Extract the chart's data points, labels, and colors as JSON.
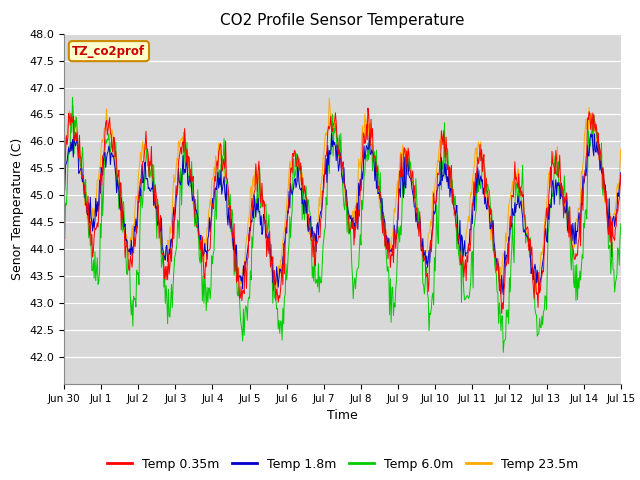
{
  "title": "CO2 Profile Sensor Temperature",
  "xlabel": "Time",
  "ylabel": "Senor Temperature (C)",
  "ylim": [
    41.5,
    48.0
  ],
  "yticks": [
    42.0,
    42.5,
    43.0,
    43.5,
    44.0,
    44.5,
    45.0,
    45.5,
    46.0,
    46.5,
    47.0,
    47.5,
    48.0
  ],
  "series_colors": [
    "#ff0000",
    "#0000cc",
    "#00cc00",
    "#ffaa00"
  ],
  "series_labels": [
    "Temp 0.35m",
    "Temp 1.8m",
    "Temp 6.0m",
    "Temp 23.5m"
  ],
  "annotation_text": "TZ_co2prof",
  "annotation_color": "#cc0000",
  "annotation_bg": "#ffffcc",
  "annotation_border": "#cc8800",
  "fig_bg": "#ffffff",
  "plot_bg": "#d8d8d8",
  "grid_color": "#ffffff",
  "x_tick_labels": [
    "Jun 30",
    "Jul 1",
    "Jul 2",
    "Jul 3",
    "Jul 4",
    "Jul 5",
    "Jul 6",
    "Jul 7",
    "Jul 8",
    "Jul 9",
    "Jul 10",
    "Jul 11",
    "Jul 12",
    "Jul 13",
    "Jul 14",
    "Jul 15"
  ],
  "n_ticks": 16,
  "seed": 42,
  "n_per_day": 48
}
